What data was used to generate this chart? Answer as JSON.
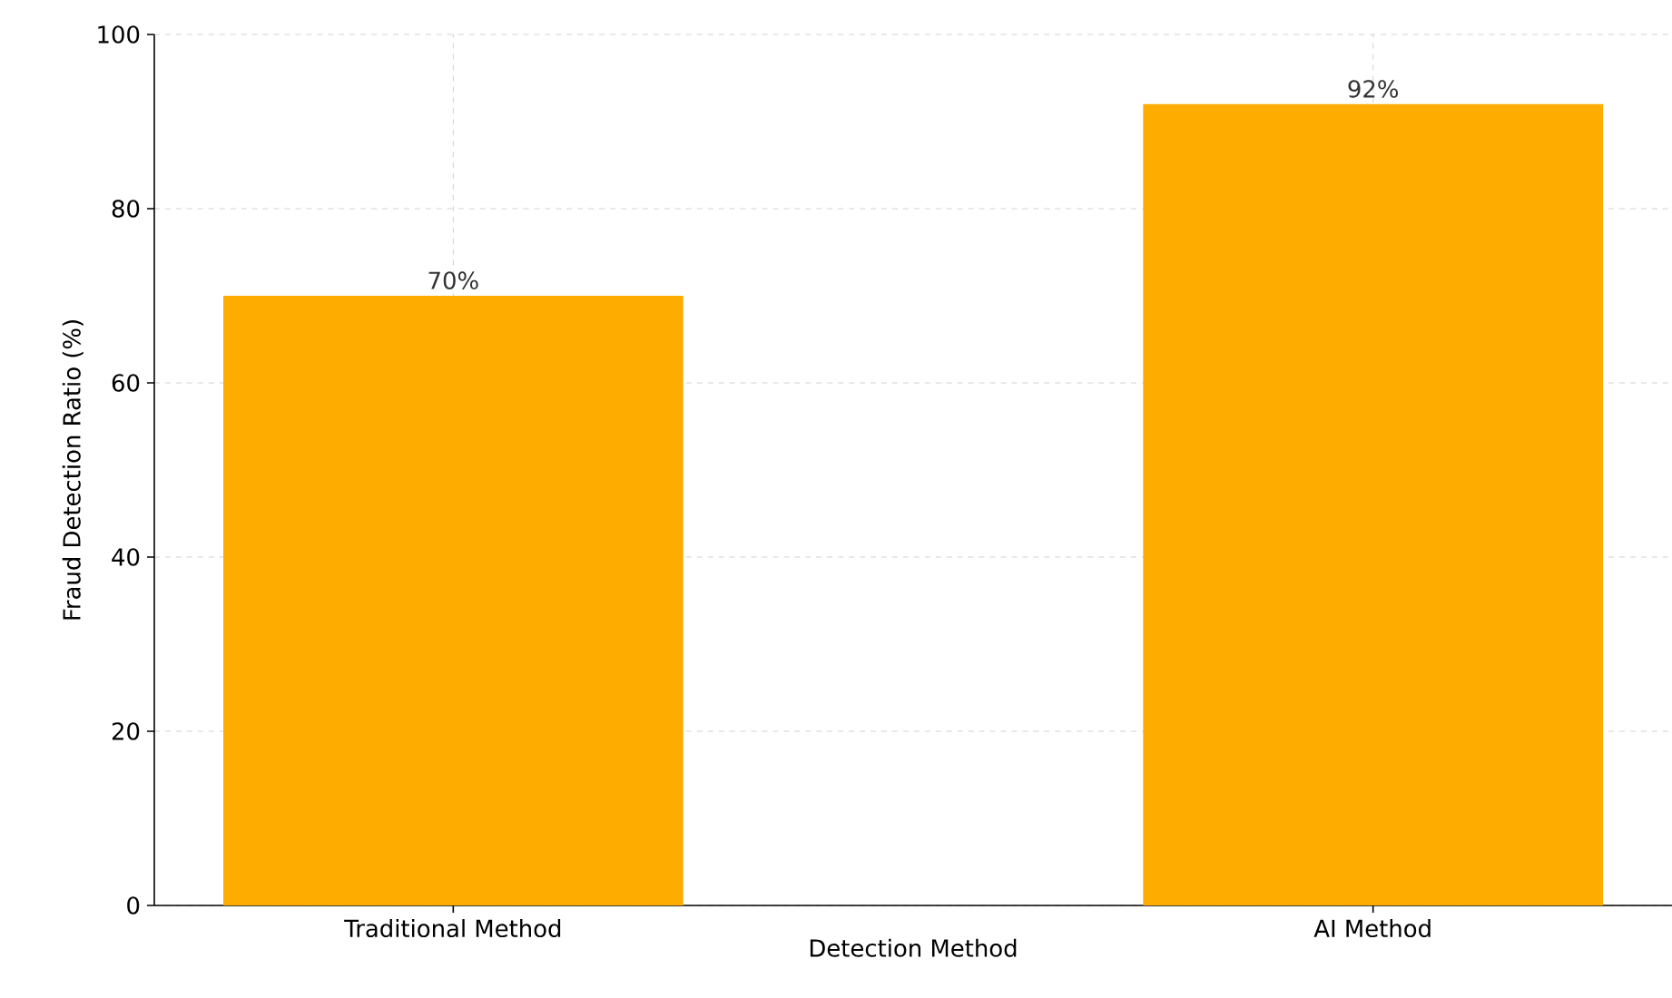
{
  "chart_data": {
    "type": "bar",
    "xlabel": "Detection Method",
    "ylabel": "Fraud Detection Ratio (%)",
    "categories": [
      "Traditional Method",
      "AI Method"
    ],
    "values": [
      70,
      92
    ],
    "value_labels": [
      "70%",
      "92%"
    ],
    "color": "#ffac00",
    "ylim": [
      0,
      100
    ],
    "yticks": [
      0,
      20,
      40,
      60,
      80,
      100
    ],
    "grid": true
  }
}
